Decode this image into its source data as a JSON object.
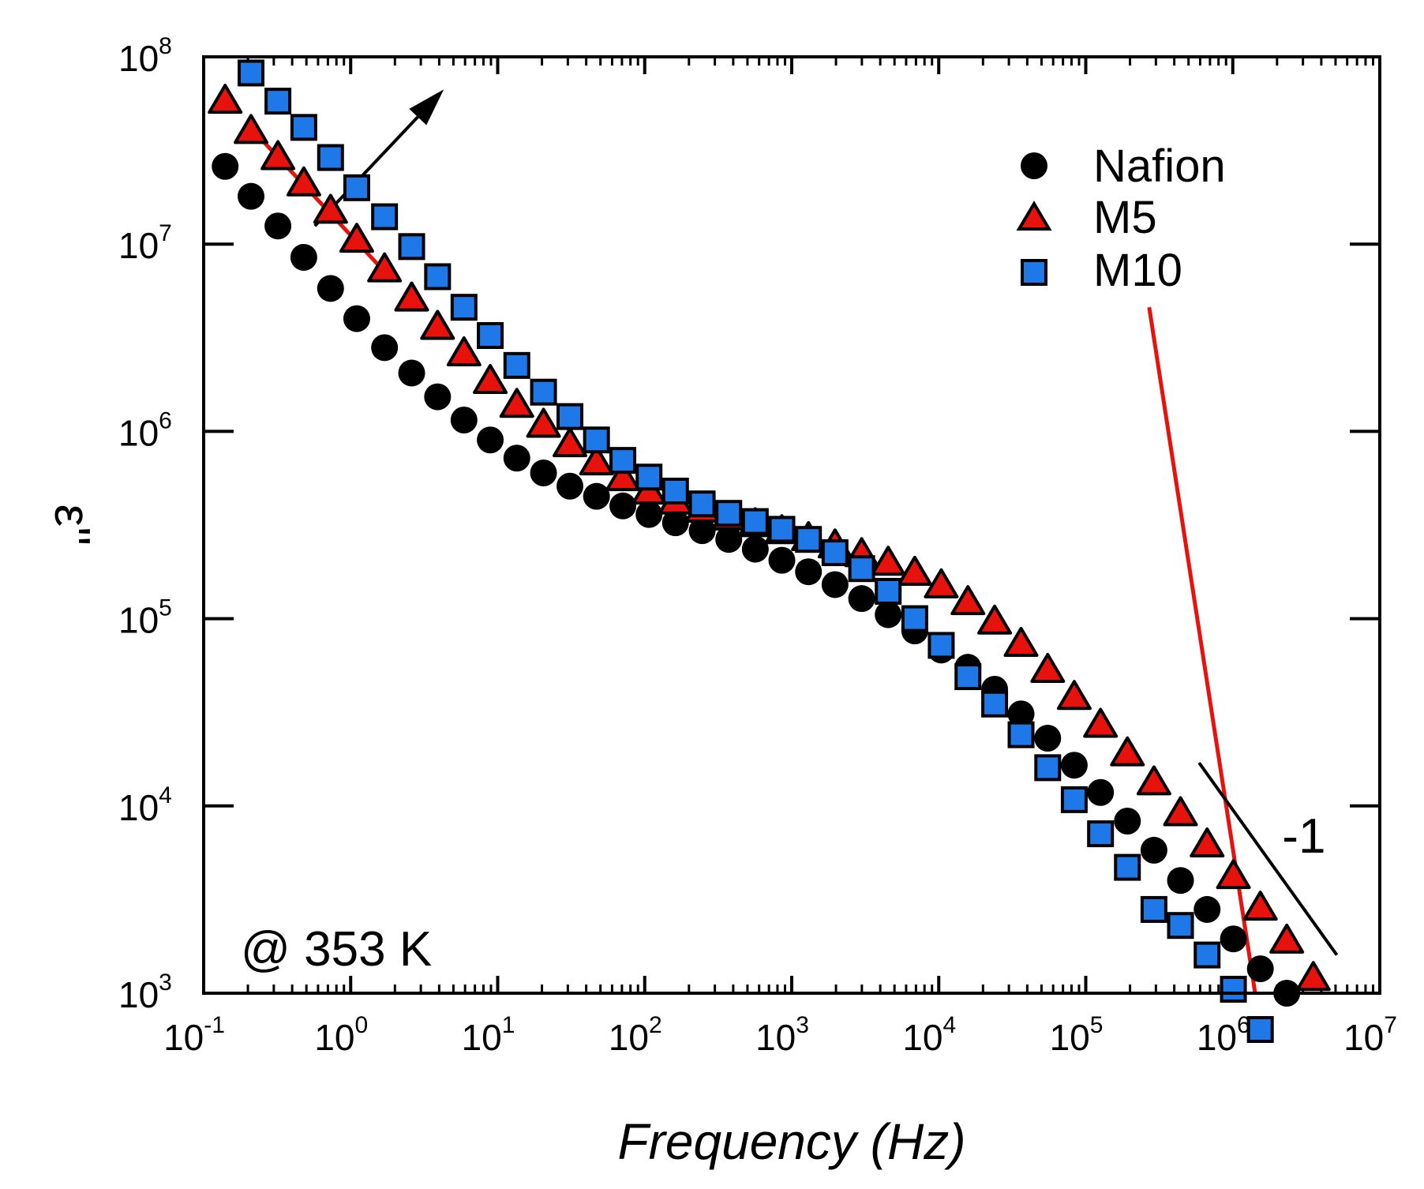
{
  "chart_data": {
    "type": "scatter",
    "title": "",
    "xlabel": "Frequency (Hz)",
    "ylabel": "ε''",
    "xscale": "log",
    "yscale": "log",
    "xlim": [
      0.1,
      10000000
    ],
    "ylim": [
      1000,
      100000000
    ],
    "grid": false,
    "legend_position": "top-right",
    "x_ticks": [
      {
        "base": "10",
        "exp": "-1"
      },
      {
        "base": "10",
        "exp": "0"
      },
      {
        "base": "10",
        "exp": "1"
      },
      {
        "base": "10",
        "exp": "2"
      },
      {
        "base": "10",
        "exp": "3"
      },
      {
        "base": "10",
        "exp": "4"
      },
      {
        "base": "10",
        "exp": "5"
      },
      {
        "base": "10",
        "exp": "6"
      },
      {
        "base": "10",
        "exp": "7"
      }
    ],
    "y_ticks": [
      {
        "base": "10",
        "exp": "3"
      },
      {
        "base": "10",
        "exp": "4"
      },
      {
        "base": "10",
        "exp": "5"
      },
      {
        "base": "10",
        "exp": "6"
      },
      {
        "base": "10",
        "exp": "7"
      },
      {
        "base": "10",
        "exp": "8"
      }
    ],
    "series": [
      {
        "name": "Nafion",
        "marker": "circle",
        "color": "#000000",
        "x": [
          0.14,
          0.21,
          0.32,
          0.48,
          0.73,
          1.1,
          1.7,
          2.6,
          3.9,
          5.9,
          8.9,
          13.5,
          20.5,
          31,
          47,
          71,
          107,
          162,
          246,
          373,
          565,
          857,
          1300,
          1970,
          2990,
          4530,
          6870,
          10400,
          15800,
          24000,
          36300,
          55100,
          83500,
          126000,
          192000,
          291000,
          441000,
          669000,
          1010000,
          1540000,
          2330000
        ],
        "y": [
          26000000,
          18000000,
          12500000,
          8500000,
          5800000,
          4000000,
          2800000,
          2050000,
          1530000,
          1150000,
          900000,
          720000,
          600000,
          510000,
          450000,
          400000,
          360000,
          325000,
          295000,
          265000,
          235000,
          205000,
          178000,
          152000,
          128000,
          105000,
          86000,
          68000,
          55000,
          42000,
          31000,
          23000,
          16500,
          11800,
          8300,
          5800,
          4000,
          2800,
          1950,
          1350,
          1000
        ]
      },
      {
        "name": "M5",
        "marker": "triangle",
        "color": "#e8120c",
        "x": [
          0.14,
          0.21,
          0.32,
          0.48,
          0.73,
          1.1,
          1.7,
          2.6,
          3.9,
          5.9,
          8.9,
          13.5,
          20.5,
          31,
          47,
          71,
          107,
          162,
          246,
          373,
          565,
          857,
          1300,
          1970,
          2990,
          4530,
          6870,
          10400,
          15800,
          24000,
          36300,
          55100,
          83500,
          126000,
          192000,
          291000,
          441000,
          669000,
          1010000,
          1540000,
          2330000,
          3530000
        ],
        "y": [
          58000000,
          40000000,
          29000000,
          21000000,
          15000000,
          10500000,
          7300000,
          5100000,
          3600000,
          2600000,
          1850000,
          1380000,
          1080000,
          850000,
          680000,
          560000,
          475000,
          420000,
          380000,
          345000,
          318000,
          292000,
          268000,
          245000,
          220000,
          198000,
          175000,
          150000,
          122000,
          96000,
          73000,
          53000,
          38000,
          27000,
          19000,
          13300,
          9100,
          6200,
          4200,
          2850,
          1900,
          1200
        ]
      },
      {
        "name": "M10",
        "marker": "square",
        "color": "#1f78e8",
        "x": [
          0.21,
          0.32,
          0.48,
          0.73,
          1.1,
          1.7,
          2.6,
          3.9,
          5.9,
          8.9,
          13.5,
          20.5,
          31,
          47,
          71,
          107,
          162,
          246,
          373,
          565,
          857,
          1300,
          1970,
          2990,
          4530,
          6870,
          10400,
          15800,
          24000,
          36300,
          55100,
          83500,
          126000,
          192000,
          291000,
          441000,
          669000,
          1010000,
          1540000
        ],
        "y": [
          82000000,
          58000000,
          42000000,
          29000000,
          20000000,
          14000000,
          9700000,
          6700000,
          4600000,
          3250000,
          2250000,
          1620000,
          1200000,
          900000,
          700000,
          570000,
          480000,
          410000,
          365000,
          330000,
          300000,
          265000,
          225000,
          185000,
          140000,
          100000,
          72000,
          49000,
          35000,
          24000,
          16000,
          10800,
          7100,
          4700,
          2800,
          2300,
          1600,
          1050,
          640
        ]
      }
    ],
    "fit_lines": [
      {
        "color": "#e8120c",
        "x": [
          0.22,
          1.6
        ],
        "y": [
          40000000,
          7500000
        ]
      },
      {
        "color": "#e8120c",
        "x": [
          270000,
          1420000
        ],
        "y": [
          4600000,
          1000
        ]
      }
    ],
    "slope_line": {
      "color": "#000000",
      "x": [
        590000,
        5100000
      ],
      "y": [
        17000,
        1600
      ],
      "label": "-1"
    },
    "arrow": {
      "color": "#000000",
      "x": [
        0.57,
        4.3
      ],
      "y": [
        12500000,
        67000000
      ]
    },
    "annotation": "@ 353 K"
  }
}
